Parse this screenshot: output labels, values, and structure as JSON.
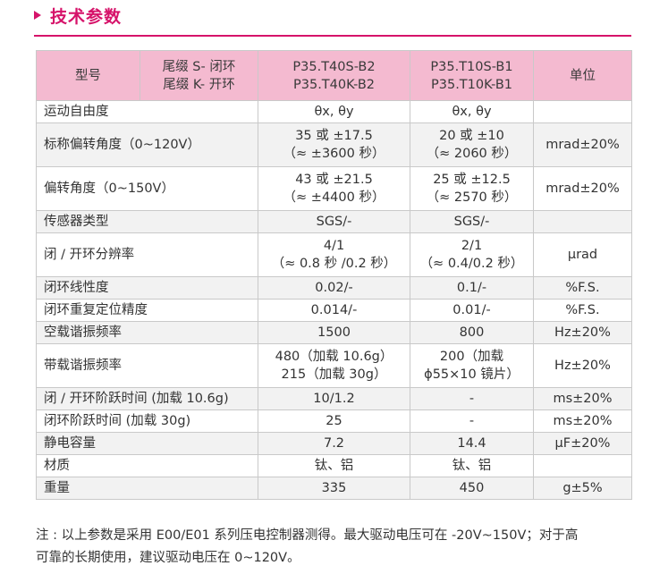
{
  "heading": {
    "title": "技术参数"
  },
  "table": {
    "header": {
      "model": "型号",
      "suffix": [
        "尾缀 S- 闭环",
        "尾缀 K- 开环"
      ],
      "col1": [
        "P35.T40S-B2",
        "P35.T40K-B2"
      ],
      "col2": [
        "P35.T10S-B1",
        "P35.T10K-B1"
      ],
      "unit": "单位"
    },
    "rows": [
      {
        "label": "运动自由度",
        "v1": [
          "θx, θy"
        ],
        "v2": [
          "θx, θy"
        ],
        "unit": ""
      },
      {
        "label": "标称偏转角度（0~120V）",
        "v1": [
          "35 或 ±17.5",
          "（≈ ±3600 秒）"
        ],
        "v2": [
          "20 或 ±10",
          "（≈ 2060 秒）"
        ],
        "unit": "mrad±20%"
      },
      {
        "label": "偏转角度（0~150V）",
        "v1": [
          "43 或 ±21.5",
          "（≈ ±4400 秒）"
        ],
        "v2": [
          "25 或 ±12.5",
          "（≈ 2570 秒）"
        ],
        "unit": "mrad±20%"
      },
      {
        "label": "传感器类型",
        "v1": [
          "SGS/-"
        ],
        "v2": [
          "SGS/-"
        ],
        "unit": ""
      },
      {
        "label": "闭 / 开环分辨率",
        "v1": [
          "4/1",
          "（≈ 0.8 秒 /0.2 秒）"
        ],
        "v2": [
          "2/1",
          "（≈ 0.4/0.2 秒）"
        ],
        "unit": "μrad"
      },
      {
        "label": "闭环线性度",
        "v1": [
          "0.02/-"
        ],
        "v2": [
          "0.1/-"
        ],
        "unit": "%F.S."
      },
      {
        "label": "闭环重复定位精度",
        "v1": [
          "0.014/-"
        ],
        "v2": [
          "0.01/-"
        ],
        "unit": "%F.S."
      },
      {
        "label": "空载谐振频率",
        "v1": [
          "1500"
        ],
        "v2": [
          "800"
        ],
        "unit": "Hz±20%"
      },
      {
        "label": "带载谐振频率",
        "v1": [
          "480（加载 10.6g）",
          "215（加载 30g）"
        ],
        "v2": [
          "200（加载",
          "ϕ55×10 镜片）"
        ],
        "unit": "Hz±20%"
      },
      {
        "label": "闭 / 开环阶跃时间 (加载 10.6g)",
        "v1": [
          "10/1.2"
        ],
        "v2": [
          "-"
        ],
        "unit": "ms±20%"
      },
      {
        "label": "闭环阶跃时间 (加载 30g)",
        "v1": [
          "25"
        ],
        "v2": [
          "-"
        ],
        "unit": "ms±20%"
      },
      {
        "label": "静电容量",
        "v1": [
          "7.2"
        ],
        "v2": [
          "14.4"
        ],
        "unit": "μF±20%"
      },
      {
        "label": "材质",
        "v1": [
          "钛、铝"
        ],
        "v2": [
          "钛、铝"
        ],
        "unit": ""
      },
      {
        "label": "重量",
        "v1": [
          "335"
        ],
        "v2": [
          "450"
        ],
        "unit": "g±5%"
      }
    ]
  },
  "note": {
    "lines": [
      "注 : 以上参数是采用 E00/E01 系列压电控制器测得。最大驱动电压可在 -20V~150V；对于高",
      "可靠的长期使用，建议驱动电压在 0~120V。"
    ]
  }
}
